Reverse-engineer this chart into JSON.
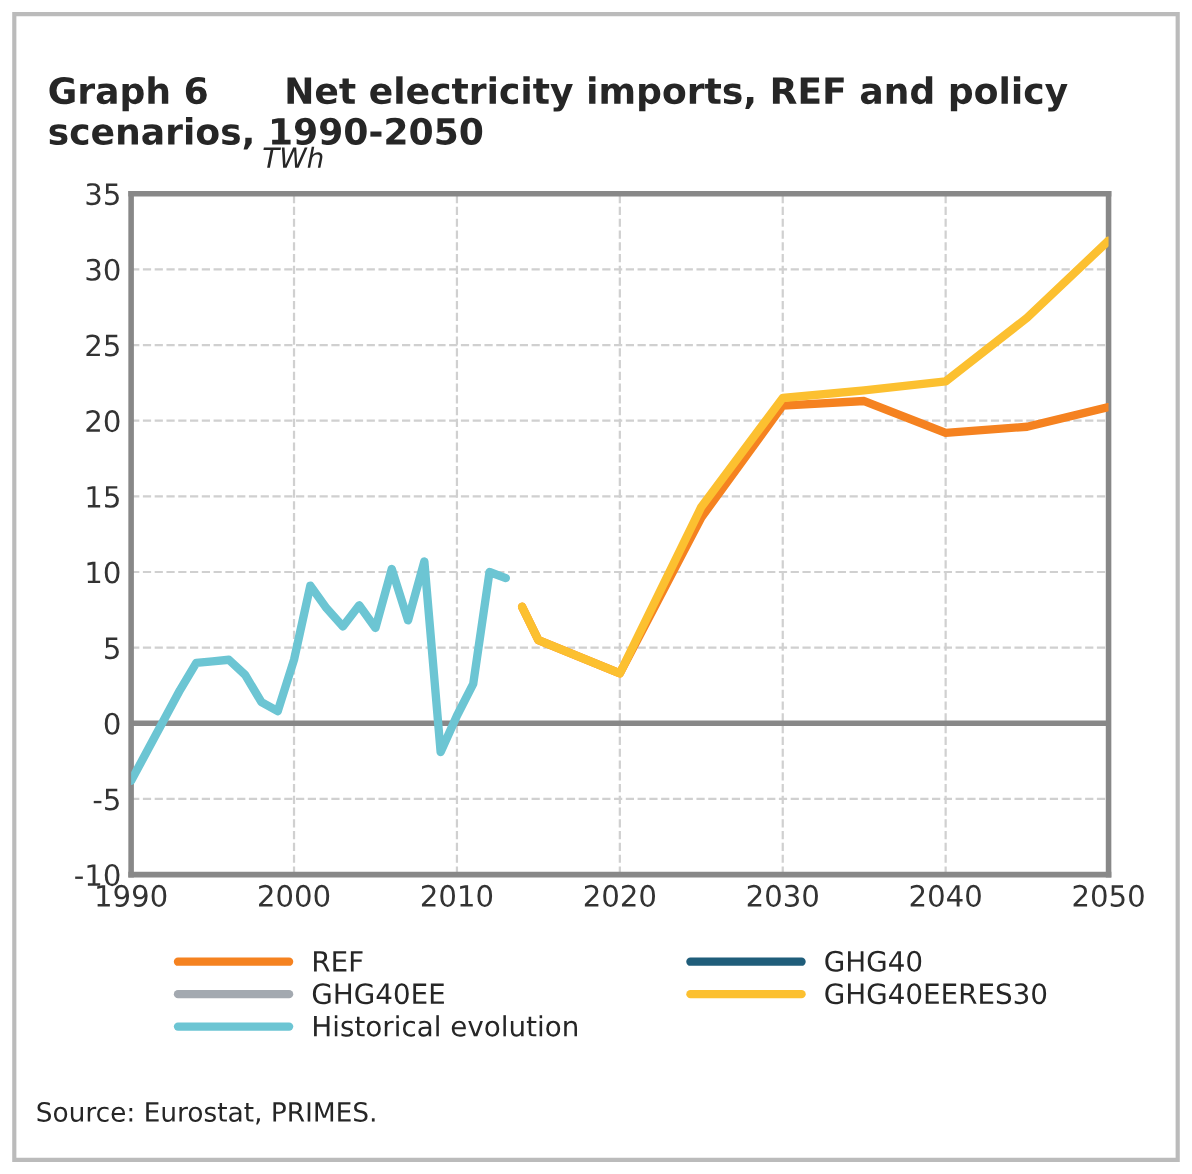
{
  "chart_data": {
    "type": "line",
    "title": "Graph 6      Net electricity imports, REF and policy scenarios, 1990-2050",
    "subtitle": "TWh",
    "annotations": [
      "Source: Eurostat, PRIMES."
    ],
    "series": [
      {
        "name": "REF",
        "color": "#f58220",
        "x": [
          2014,
          2015,
          2020,
          2025,
          2030,
          2035,
          2040,
          2045,
          2050
        ],
        "values": [
          7.7,
          5.5,
          3.3,
          13.6,
          21.0,
          21.3,
          19.2,
          19.6,
          20.9
        ]
      },
      {
        "name": "GHG40",
        "color": "#1f5d7a",
        "values": [
          null,
          null,
          null,
          null,
          null,
          null,
          null,
          null,
          null
        ]
      },
      {
        "name": "GHG40EE",
        "color": "#a3a9b0",
        "values": [
          null,
          null,
          null,
          null,
          null,
          null,
          null,
          null,
          null
        ]
      },
      {
        "name": "GHG40EERES30",
        "color": "#fcc030",
        "x": [
          2014,
          2015,
          2020,
          2025,
          2030,
          2035,
          2040,
          2045,
          2050
        ],
        "values": [
          7.7,
          5.5,
          3.3,
          14.3,
          21.5,
          22.0,
          22.6,
          26.8,
          31.9
        ]
      },
      {
        "name": "Historical evolution",
        "color": "#6cc5d3",
        "x": [
          1990,
          1991,
          1992,
          1993,
          1994,
          1995,
          1996,
          1997,
          1998,
          1999,
          2000,
          2001,
          2002,
          2003,
          2004,
          2005,
          2006,
          2007,
          2008,
          2009,
          2010,
          2011,
          2012,
          2013
        ],
        "values": [
          -3.8,
          -1.8,
          0.2,
          2.2,
          4.0,
          4.1,
          4.2,
          3.2,
          1.4,
          0.8,
          4.2,
          9.1,
          7.6,
          6.4,
          7.8,
          6.3,
          10.2,
          6.8,
          10.7,
          -1.9,
          0.5,
          2.6,
          10.0,
          9.6
        ]
      }
    ],
    "xlim": [
      1990,
      2050
    ],
    "xticks": [
      1990,
      2000,
      2010,
      2020,
      2030,
      2040,
      2050
    ],
    "ylim": [
      -10,
      35
    ],
    "yticks": [
      -10,
      -5,
      0,
      5,
      10,
      15,
      20,
      25,
      30,
      35
    ],
    "grid": true,
    "legend": "bottom",
    "marker": "none",
    "line_style": "solid"
  }
}
